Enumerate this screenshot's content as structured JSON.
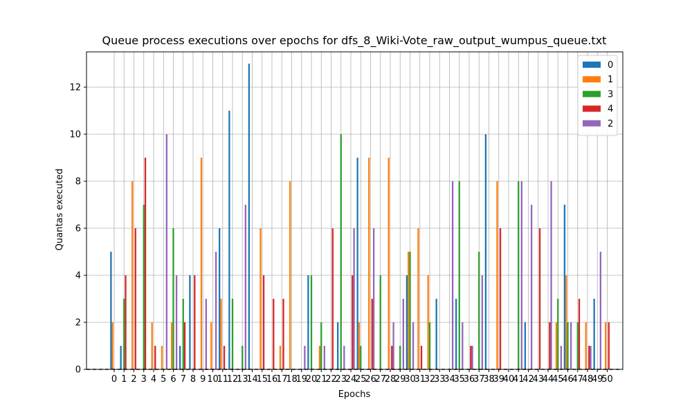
{
  "chart_data": {
    "type": "bar",
    "title": "Queue process executions over epochs for dfs_8_Wiki-Vote_raw_output_wumpus_queue.txt",
    "xlabel": "Epochs",
    "ylabel": "Quantas executed",
    "ylim": [
      0,
      13.5
    ],
    "yticks": [
      0,
      2,
      4,
      6,
      8,
      10,
      12
    ],
    "grid": true,
    "legend_position": "top-right",
    "categories": [
      "0",
      "1",
      "2",
      "3",
      "4",
      "5",
      "6",
      "7",
      "8",
      "9",
      "10",
      "11",
      "12",
      "13",
      "14",
      "15",
      "16",
      "17",
      "18",
      "19",
      "20",
      "21",
      "22",
      "23",
      "24",
      "25",
      "26",
      "27",
      "28",
      "29",
      "30",
      "31",
      "32",
      "33",
      "34",
      "35",
      "36",
      "37",
      "38",
      "39",
      "40",
      "41",
      "42",
      "43",
      "44",
      "45",
      "46",
      "47",
      "48",
      "49",
      "50"
    ],
    "series": [
      {
        "name": "0",
        "color": "#1f77b4",
        "values": [
          5,
          1,
          0,
          0,
          0,
          0,
          0,
          1,
          4,
          0,
          0,
          6,
          11,
          0,
          13,
          0,
          0,
          0,
          0,
          0,
          4,
          0,
          0,
          2,
          0,
          9,
          0,
          0,
          0,
          0,
          4,
          0,
          0,
          3,
          0,
          3,
          0,
          0,
          10,
          0,
          0,
          0,
          2,
          0,
          0,
          0,
          7,
          0,
          0,
          3,
          0
        ]
      },
      {
        "name": "1",
        "color": "#ff7f0e",
        "values": [
          2,
          0,
          8,
          0,
          2,
          1,
          2,
          0,
          0,
          9,
          2,
          3,
          0,
          0,
          0,
          6,
          0,
          1,
          8,
          0,
          0,
          1,
          0,
          0,
          0,
          2,
          9,
          0,
          9,
          0,
          5,
          6,
          4,
          0,
          0,
          0,
          0,
          0,
          0,
          8,
          0,
          0,
          0,
          0,
          0,
          2,
          4,
          0,
          2,
          0,
          2
        ]
      },
      {
        "name": "3",
        "color": "#2ca02c",
        "values": [
          0,
          3,
          0,
          7,
          0,
          0,
          6,
          3,
          0,
          0,
          0,
          0,
          3,
          1,
          0,
          0,
          0,
          0,
          0,
          0,
          4,
          2,
          0,
          10,
          0,
          1,
          0,
          4,
          0,
          1,
          5,
          0,
          2,
          0,
          0,
          8,
          0,
          5,
          0,
          0,
          0,
          8,
          0,
          0,
          0,
          3,
          2,
          2,
          0,
          0,
          0
        ]
      },
      {
        "name": "4",
        "color": "#d62728",
        "values": [
          0,
          4,
          6,
          9,
          1,
          0,
          0,
          2,
          4,
          0,
          0,
          1,
          0,
          0,
          0,
          4,
          3,
          3,
          0,
          0,
          0,
          0,
          6,
          0,
          4,
          0,
          3,
          0,
          1,
          0,
          0,
          1,
          0,
          0,
          0,
          0,
          1,
          0,
          0,
          6,
          0,
          0,
          0,
          6,
          2,
          0,
          0,
          3,
          1,
          0,
          2
        ]
      },
      {
        "name": "2",
        "color": "#9467bd",
        "values": [
          0,
          0,
          0,
          0,
          0,
          10,
          4,
          0,
          0,
          3,
          5,
          0,
          0,
          7,
          0,
          0,
          0,
          0,
          0,
          1,
          0,
          1,
          0,
          1,
          6,
          0,
          6,
          0,
          2,
          3,
          2,
          0,
          0,
          0,
          8,
          2,
          1,
          4,
          0,
          0,
          0,
          8,
          7,
          0,
          8,
          1,
          2,
          0,
          1,
          5,
          0
        ]
      }
    ]
  }
}
